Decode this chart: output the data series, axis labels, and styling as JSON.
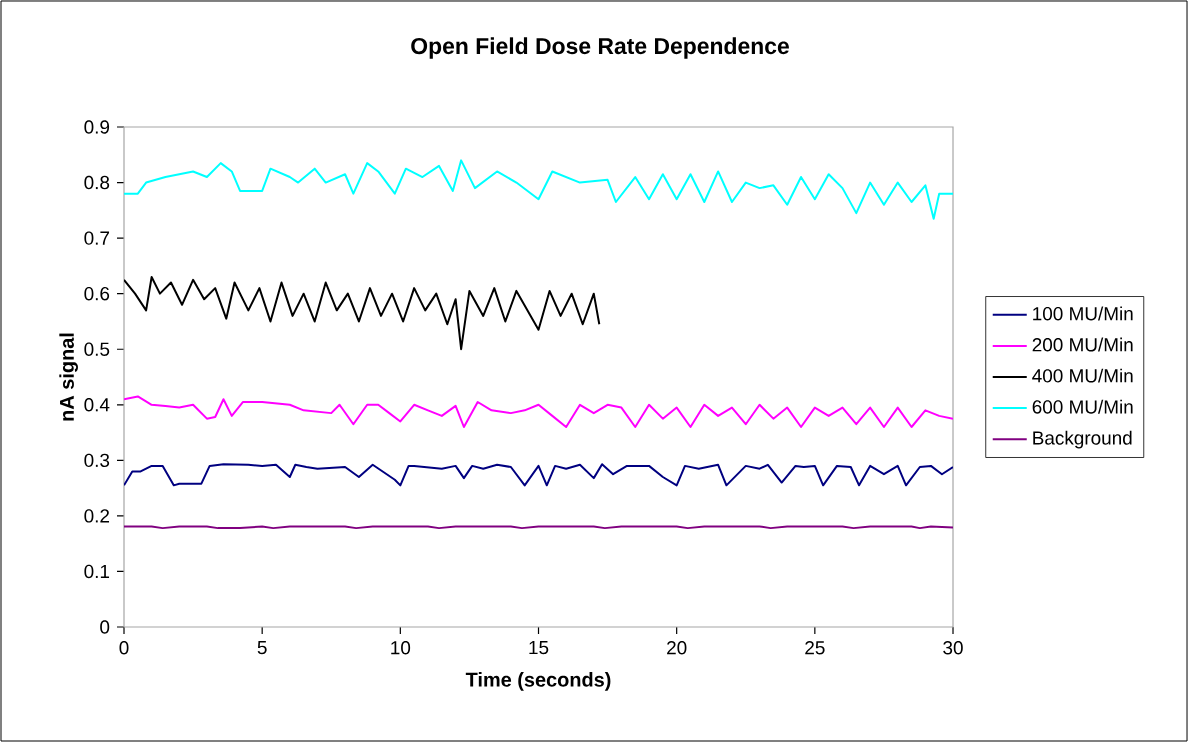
{
  "chart_data": {
    "type": "line",
    "title": "Open Field Dose Rate Dependence",
    "xlabel": "Time  (seconds)",
    "ylabel": "nA signal",
    "xlim": [
      0,
      30
    ],
    "ylim": [
      0,
      0.9
    ],
    "xticks": [
      0,
      5,
      10,
      15,
      20,
      25,
      30
    ],
    "yticks": [
      0,
      0.1,
      0.2,
      0.3,
      0.4,
      0.5,
      0.6,
      0.7,
      0.8,
      0.9
    ],
    "legend": "right",
    "series": [
      {
        "name": "100 MU/Min",
        "color": "#000080",
        "x": [
          0,
          0.3,
          0.6,
          1.0,
          1.4,
          1.8,
          2.0,
          2.8,
          3.1,
          3.6,
          4.5,
          5.0,
          5.5,
          6.0,
          6.2,
          6.6,
          7.0,
          8.0,
          8.5,
          9.0,
          9.8,
          10.0,
          10.3,
          10.5,
          11.5,
          12.0,
          12.3,
          12.6,
          13.0,
          13.5,
          14.0,
          14.5,
          15.0,
          15.3,
          15.6,
          16.0,
          16.5,
          17.0,
          17.3,
          17.7,
          18.2,
          19.0,
          19.5,
          20.0,
          20.3,
          20.8,
          21.5,
          21.8,
          22.5,
          23.0,
          23.3,
          23.8,
          24.3,
          24.6,
          25.0,
          25.3,
          25.8,
          26.3,
          26.6,
          27.0,
          27.5,
          28.0,
          28.3,
          28.8,
          29.2,
          29.6,
          30.0
        ],
        "values": [
          0.255,
          0.28,
          0.28,
          0.29,
          0.29,
          0.255,
          0.258,
          0.258,
          0.29,
          0.293,
          0.292,
          0.29,
          0.292,
          0.27,
          0.292,
          0.288,
          0.285,
          0.288,
          0.27,
          0.292,
          0.265,
          0.255,
          0.29,
          0.29,
          0.285,
          0.29,
          0.268,
          0.29,
          0.285,
          0.292,
          0.288,
          0.255,
          0.29,
          0.255,
          0.29,
          0.285,
          0.292,
          0.268,
          0.293,
          0.275,
          0.29,
          0.29,
          0.27,
          0.255,
          0.29,
          0.285,
          0.292,
          0.255,
          0.29,
          0.285,
          0.292,
          0.26,
          0.29,
          0.288,
          0.29,
          0.255,
          0.29,
          0.288,
          0.255,
          0.29,
          0.275,
          0.29,
          0.255,
          0.288,
          0.29,
          0.275,
          0.288
        ]
      },
      {
        "name": "200 MU/Min",
        "color": "#ff00ff",
        "x": [
          0,
          0.5,
          1.0,
          1.5,
          2.0,
          2.5,
          3.0,
          3.3,
          3.6,
          3.9,
          4.3,
          4.7,
          5.0,
          6.0,
          6.5,
          7.5,
          7.8,
          8.3,
          8.8,
          9.2,
          9.6,
          10.0,
          10.5,
          11.0,
          11.5,
          12.0,
          12.3,
          12.8,
          13.3,
          14.0,
          14.5,
          15.0,
          15.5,
          16.0,
          16.5,
          17.0,
          17.5,
          18.0,
          18.5,
          19.0,
          19.5,
          20.0,
          20.5,
          21.0,
          21.5,
          22.0,
          22.5,
          23.0,
          23.5,
          24.0,
          24.5,
          25.0,
          25.5,
          26.0,
          26.5,
          27.0,
          27.5,
          28.0,
          28.5,
          29.0,
          29.5,
          30.0
        ],
        "values": [
          0.41,
          0.415,
          0.4,
          0.398,
          0.395,
          0.4,
          0.375,
          0.378,
          0.41,
          0.38,
          0.405,
          0.405,
          0.405,
          0.4,
          0.39,
          0.385,
          0.4,
          0.365,
          0.4,
          0.4,
          0.385,
          0.37,
          0.4,
          0.39,
          0.38,
          0.398,
          0.36,
          0.405,
          0.39,
          0.385,
          0.39,
          0.4,
          0.38,
          0.36,
          0.4,
          0.385,
          0.4,
          0.395,
          0.36,
          0.4,
          0.375,
          0.395,
          0.36,
          0.4,
          0.38,
          0.395,
          0.365,
          0.4,
          0.375,
          0.395,
          0.36,
          0.395,
          0.38,
          0.395,
          0.365,
          0.395,
          0.36,
          0.395,
          0.36,
          0.39,
          0.38,
          0.375
        ]
      },
      {
        "name": "400 MU/Min",
        "color": "#000000",
        "x": [
          0,
          0.4,
          0.8,
          1.0,
          1.3,
          1.7,
          2.1,
          2.5,
          2.9,
          3.3,
          3.7,
          4.0,
          4.5,
          4.9,
          5.3,
          5.7,
          6.1,
          6.5,
          6.9,
          7.3,
          7.7,
          8.1,
          8.5,
          8.9,
          9.3,
          9.7,
          10.1,
          10.5,
          10.9,
          11.3,
          11.7,
          12.0,
          12.2,
          12.5,
          13.0,
          13.4,
          13.8,
          14.2,
          14.6,
          15.0,
          15.4,
          15.8,
          16.2,
          16.6,
          17.0,
          17.2
        ],
        "values": [
          0.625,
          0.6,
          0.57,
          0.63,
          0.6,
          0.62,
          0.58,
          0.625,
          0.59,
          0.61,
          0.555,
          0.62,
          0.57,
          0.61,
          0.55,
          0.62,
          0.56,
          0.6,
          0.55,
          0.62,
          0.57,
          0.6,
          0.55,
          0.61,
          0.56,
          0.6,
          0.55,
          0.61,
          0.57,
          0.6,
          0.545,
          0.59,
          0.5,
          0.605,
          0.56,
          0.61,
          0.55,
          0.605,
          0.57,
          0.535,
          0.605,
          0.56,
          0.6,
          0.545,
          0.6,
          0.545
        ]
      },
      {
        "name": "600 MU/Min",
        "color": "#00ffff",
        "x": [
          0,
          0.5,
          0.8,
          1.5,
          2.0,
          2.5,
          3.0,
          3.5,
          3.9,
          4.2,
          5.0,
          5.3,
          6.0,
          6.3,
          6.9,
          7.3,
          8.0,
          8.3,
          8.8,
          9.2,
          9.8,
          10.2,
          10.8,
          11.4,
          11.9,
          12.2,
          12.7,
          13.5,
          14.2,
          15.0,
          15.5,
          16.5,
          17.5,
          17.8,
          18.5,
          19.0,
          19.5,
          20.0,
          20.5,
          21.0,
          21.5,
          22.0,
          22.5,
          23.0,
          23.5,
          24.0,
          24.5,
          25.0,
          25.5,
          26.0,
          26.5,
          27.0,
          27.5,
          28.0,
          28.5,
          29.0,
          29.3,
          29.5,
          30.0
        ],
        "values": [
          0.78,
          0.78,
          0.8,
          0.81,
          0.815,
          0.82,
          0.81,
          0.835,
          0.82,
          0.785,
          0.785,
          0.825,
          0.81,
          0.8,
          0.825,
          0.8,
          0.815,
          0.78,
          0.835,
          0.82,
          0.78,
          0.825,
          0.81,
          0.83,
          0.785,
          0.84,
          0.79,
          0.82,
          0.8,
          0.77,
          0.82,
          0.8,
          0.805,
          0.765,
          0.81,
          0.77,
          0.815,
          0.77,
          0.815,
          0.765,
          0.82,
          0.765,
          0.8,
          0.79,
          0.795,
          0.76,
          0.81,
          0.77,
          0.815,
          0.79,
          0.745,
          0.8,
          0.76,
          0.8,
          0.765,
          0.795,
          0.735,
          0.78,
          0.78
        ]
      },
      {
        "name": "Background",
        "color": "#800080",
        "x": [
          0,
          1.0,
          1.4,
          2.0,
          3.0,
          3.4,
          4.2,
          5.0,
          5.4,
          6.0,
          8.0,
          8.4,
          9.0,
          11.0,
          11.4,
          12.0,
          14.0,
          14.4,
          15.0,
          17.0,
          17.4,
          18.0,
          20.0,
          20.4,
          21.0,
          23.0,
          23.4,
          24.0,
          26.0,
          26.4,
          27.0,
          28.5,
          28.8,
          29.2,
          30.0
        ],
        "values": [
          0.181,
          0.181,
          0.178,
          0.181,
          0.181,
          0.178,
          0.178,
          0.181,
          0.178,
          0.181,
          0.181,
          0.178,
          0.181,
          0.181,
          0.178,
          0.181,
          0.181,
          0.178,
          0.181,
          0.181,
          0.178,
          0.181,
          0.181,
          0.178,
          0.181,
          0.181,
          0.178,
          0.181,
          0.181,
          0.178,
          0.181,
          0.181,
          0.178,
          0.181,
          0.179
        ]
      }
    ]
  }
}
